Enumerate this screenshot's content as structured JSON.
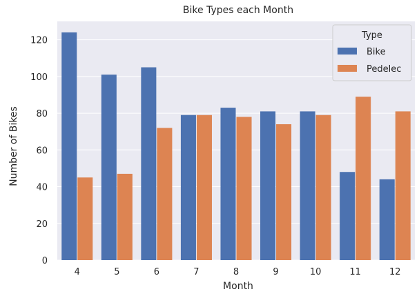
{
  "chart_data": {
    "type": "bar",
    "title": "Bike Types each Month",
    "xlabel": "Month",
    "ylabel": "Number of Bikes",
    "categories": [
      "4",
      "5",
      "6",
      "7",
      "8",
      "9",
      "10",
      "11",
      "12"
    ],
    "ylim": [
      0,
      130
    ],
    "yticks": [
      0,
      20,
      40,
      60,
      80,
      100,
      120
    ],
    "grid": true,
    "legend": {
      "title": "Type",
      "placement": "top-right"
    },
    "series": [
      {
        "name": "Bike",
        "color": "#4c72b0",
        "values": [
          124,
          101,
          105,
          79,
          83,
          81,
          81,
          48,
          44
        ]
      },
      {
        "name": "Pedelec",
        "color": "#dd8452",
        "values": [
          45,
          47,
          72,
          79,
          78,
          74,
          79,
          89,
          81
        ]
      }
    ],
    "plot_background": "#eaeaf2"
  }
}
